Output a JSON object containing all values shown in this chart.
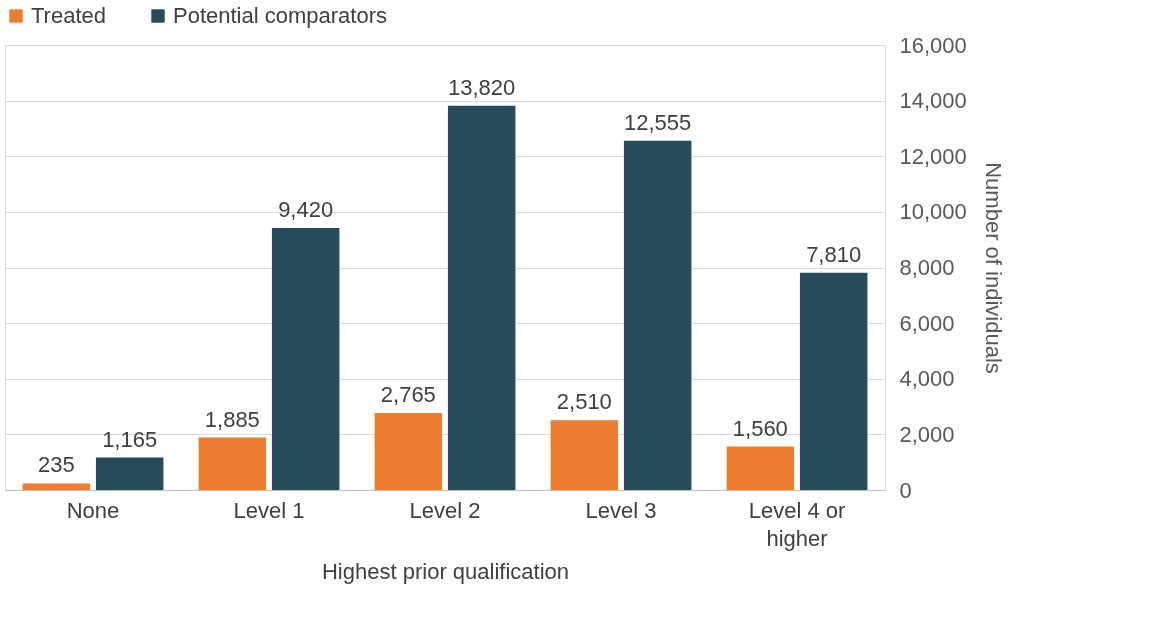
{
  "chart_data": {
    "type": "bar",
    "xlabel": "Highest prior qualification",
    "ylabel": "Number of individuals",
    "categories": [
      "None",
      "Level 1",
      "Level 2",
      "Level 3",
      "Level 4 or higher"
    ],
    "series": [
      {
        "name": "Treated",
        "color": "#ed7d31",
        "values": [
          235,
          1885,
          2765,
          2510,
          1560
        ],
        "value_labels": [
          "235",
          "1,885",
          "2,765",
          "2,510",
          "1,560"
        ]
      },
      {
        "name": "Potential comparators",
        "color": "#264b5a",
        "values": [
          1165,
          9420,
          13820,
          12555,
          7810
        ],
        "value_labels": [
          "1,165",
          "9,420",
          "13,820",
          "12,555",
          "7,810"
        ]
      }
    ],
    "ylim": [
      0,
      16000
    ],
    "yticks": [
      0,
      {
        "value": 2000,
        "label": "2,000"
      },
      {
        "value": 4000,
        "label": "4,000"
      },
      {
        "value": 6000,
        "label": "6,000"
      },
      {
        "value": 8000,
        "label": "8,000"
      },
      {
        "value": 10000,
        "label": "10,000"
      },
      {
        "value": 12000,
        "label": "12,000"
      },
      {
        "value": 14000,
        "label": "14,000"
      },
      {
        "value": 16000,
        "label": "16,000"
      }
    ],
    "grid": "y",
    "legend": "top"
  }
}
